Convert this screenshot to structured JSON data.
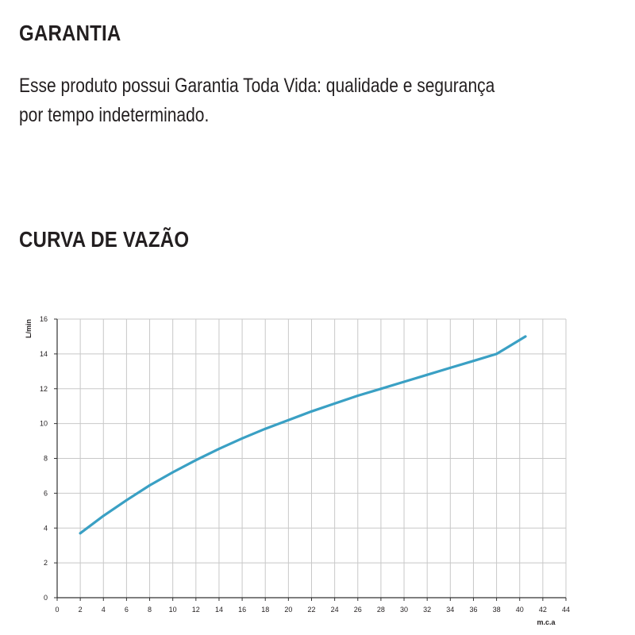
{
  "warranty": {
    "title": "GARANTIA",
    "line1": "Esse produto possui Garantia Toda Vida: qualidade e segurança",
    "line2": "por tempo indeterminado."
  },
  "flow_section": {
    "title": "CURVA DE VAZÃO"
  },
  "colors": {
    "curve": "#3aa0c4",
    "grid": "#c8c8c8",
    "axis": "#333333",
    "text": "#231f20"
  },
  "chart_data": {
    "type": "line",
    "xlabel": "m.c.a",
    "ylabel": "L/min",
    "xlim": [
      0,
      44
    ],
    "ylim": [
      0,
      16
    ],
    "x_ticks": [
      0,
      2,
      4,
      6,
      8,
      10,
      12,
      14,
      16,
      18,
      20,
      22,
      24,
      26,
      28,
      30,
      32,
      34,
      36,
      38,
      40,
      42,
      44
    ],
    "y_ticks": [
      0,
      2,
      4,
      6,
      8,
      10,
      12,
      14,
      16
    ],
    "grid": true,
    "series": [
      {
        "x": [
          2,
          4,
          6,
          8,
          10,
          12,
          14,
          16,
          18,
          20,
          22,
          24,
          26,
          28,
          30,
          32,
          34,
          36,
          38,
          40.5
        ],
        "y": [
          3.7,
          4.7,
          5.6,
          6.45,
          7.2,
          7.9,
          8.55,
          9.15,
          9.7,
          10.2,
          10.7,
          11.15,
          11.6,
          12.0,
          12.4,
          12.8,
          13.2,
          13.6,
          14.0,
          15.0
        ]
      }
    ]
  }
}
